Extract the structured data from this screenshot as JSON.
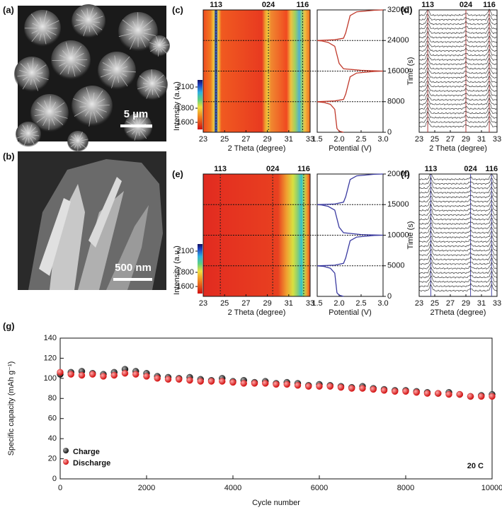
{
  "panels": {
    "a": {
      "label": "(a)",
      "scale_bar": "5 µm"
    },
    "b": {
      "label": "(b)",
      "scale_bar": "500 nm"
    },
    "c": {
      "label": "(c)",
      "color": "#b03a3a",
      "line_color": "#c0392b",
      "peaks": [
        {
          "label": "113",
          "theta": 24.2
        },
        {
          "label": "024",
          "theta": 29.1
        },
        {
          "label": "116",
          "theta": 32.3
        }
      ],
      "xlim": [
        23,
        33
      ],
      "xticks": [
        23,
        25,
        27,
        29,
        31,
        33
      ],
      "xlabel": "2 Theta (degree)",
      "colorbar_label": "Intensity (a.u.)",
      "clim": [
        1500,
        2200
      ],
      "cticks": [
        1600,
        1800,
        2100
      ],
      "potential_xlim": [
        1.5,
        3
      ],
      "potential_xticks": [
        1.5,
        {
          "value": 2,
          "label": "2.0"
        },
        2.5,
        {
          "value": 3,
          "label": "3.0"
        }
      ],
      "potential_xlabel": "Potential (V)",
      "time_ylim": [
        0,
        32000
      ],
      "time_yticks": [
        0,
        8000,
        16000,
        24000,
        32000
      ],
      "time_ylabel": "Time (s)",
      "dashed_times": [
        8000,
        16000,
        24000
      ],
      "time": [
        0,
        300,
        1000,
        6000,
        7300,
        7800,
        8000,
        8200,
        8600,
        10000,
        14500,
        15500,
        15900,
        16000,
        16200,
        16600,
        18000,
        22500,
        23500,
        23900,
        24000,
        24200,
        24600,
        26000,
        30500,
        31500,
        31900,
        32000
      ],
      "potential": [
        2.1,
        2.0,
        1.95,
        1.9,
        1.8,
        1.65,
        1.5,
        1.9,
        2.1,
        2.15,
        2.25,
        2.4,
        2.8,
        3.0,
        2.5,
        2.1,
        2.0,
        1.9,
        1.75,
        1.6,
        1.5,
        1.9,
        2.1,
        2.15,
        2.25,
        2.4,
        2.8,
        3.0
      ]
    },
    "d": {
      "label": "(d)",
      "color": "#b03a3a",
      "peaks": [
        {
          "label": "113",
          "theta": 24.1
        },
        {
          "label": "024",
          "theta": 29.0
        },
        {
          "label": "116",
          "theta": 32.0
        }
      ],
      "xlim": [
        23,
        33
      ],
      "xticks": [
        23,
        25,
        27,
        29,
        31,
        33
      ],
      "xlabel": "2 Theta (degree)"
    },
    "e": {
      "label": "(e)",
      "color": "#4a4aa8",
      "line_color": "#3a3aa0",
      "peaks": [
        {
          "label": "113",
          "theta": 24.6
        },
        {
          "label": "024",
          "theta": 29.5
        },
        {
          "label": "116",
          "theta": 32.4
        }
      ],
      "xlim": [
        23,
        33
      ],
      "xticks": [
        23,
        25,
        27,
        29,
        31,
        33
      ],
      "xlabel": "2 Theta (degree)",
      "colorbar_label": "Intensity (a.u.)",
      "clim": [
        1500,
        2200
      ],
      "cticks": [
        1600,
        1800,
        2100
      ],
      "potential_xlim": [
        1.5,
        3
      ],
      "potential_xticks": [
        1.5,
        {
          "value": 2,
          "label": "2.0"
        },
        2.5,
        {
          "value": 3,
          "label": "3.0"
        }
      ],
      "potential_xlabel": "Potential (V)",
      "time_ylim": [
        0,
        20000
      ],
      "time_yticks": [
        0,
        5000,
        10000,
        15000,
        20000
      ],
      "time_ylabel": "Time (s)",
      "dashed_times": [
        5000,
        10000,
        15000
      ],
      "time": [
        0,
        200,
        600,
        3800,
        4600,
        4900,
        5000,
        5100,
        5400,
        6300,
        9100,
        9700,
        9950,
        10000,
        10100,
        10400,
        11300,
        14100,
        14700,
        14950,
        15000,
        15100,
        15400,
        16300,
        19100,
        19700,
        19950,
        20000
      ],
      "potential": [
        2.1,
        2.0,
        1.95,
        1.9,
        1.8,
        1.65,
        1.5,
        1.9,
        2.1,
        2.15,
        2.25,
        2.4,
        2.8,
        3.0,
        2.5,
        2.1,
        2.0,
        1.9,
        1.75,
        1.6,
        1.5,
        1.9,
        2.1,
        2.15,
        2.25,
        2.4,
        2.8,
        3.0
      ]
    },
    "f": {
      "label": "(f)",
      "color": "#4a4aa8",
      "peaks": [
        {
          "label": "113",
          "theta": 24.5
        },
        {
          "label": "024",
          "theta": 29.6
        },
        {
          "label": "116",
          "theta": 32.3
        }
      ],
      "xlim": [
        23,
        33
      ],
      "xticks": [
        23,
        25,
        27,
        29,
        31,
        33
      ],
      "xlabel": "2Theta (degree)"
    }
  },
  "chart_data": {
    "type": "scatter",
    "label": "(g)",
    "annotation": "20 C",
    "xlabel": "Cycle number",
    "ylabel": "Specific capacity (mAh g⁻¹)",
    "x": [
      0,
      250,
      500,
      750,
      1000,
      1250,
      1500,
      1750,
      2000,
      2250,
      2500,
      2750,
      3000,
      3250,
      3500,
      3750,
      4000,
      4250,
      4500,
      4750,
      5000,
      5250,
      5500,
      5750,
      6000,
      6250,
      6500,
      6750,
      7000,
      7250,
      7500,
      7750,
      8000,
      8250,
      8500,
      8750,
      9000,
      9250,
      9500,
      9750,
      10000
    ],
    "series": [
      {
        "name": "Charge",
        "color": "#111111",
        "values": [
          104,
          106,
          107,
          105,
          104,
          106,
          109,
          107,
          105,
          102,
          101,
          100,
          101,
          99,
          98,
          100,
          97,
          98,
          96,
          97,
          95,
          96,
          95,
          93,
          94,
          93,
          92,
          91,
          92,
          90,
          89,
          88,
          88,
          87,
          86,
          85,
          86,
          84,
          82,
          83,
          84
        ]
      },
      {
        "name": "Discharge",
        "color": "#e02020",
        "values": [
          106,
          104,
          103,
          104,
          102,
          103,
          105,
          104,
          102,
          100,
          99,
          99,
          98,
          97,
          97,
          97,
          96,
          95,
          95,
          95,
          94,
          94,
          93,
          92,
          92,
          92,
          91,
          90,
          90,
          89,
          88,
          87,
          87,
          86,
          85,
          85,
          84,
          84,
          82,
          82,
          82
        ]
      }
    ],
    "xlim": [
      0,
      10000
    ],
    "xticks": [
      0,
      2000,
      4000,
      6000,
      8000,
      10000
    ],
    "ylim": [
      0,
      140
    ],
    "yticks": [
      0,
      20,
      40,
      60,
      80,
      100,
      120,
      140
    ],
    "legend": "lower left"
  }
}
